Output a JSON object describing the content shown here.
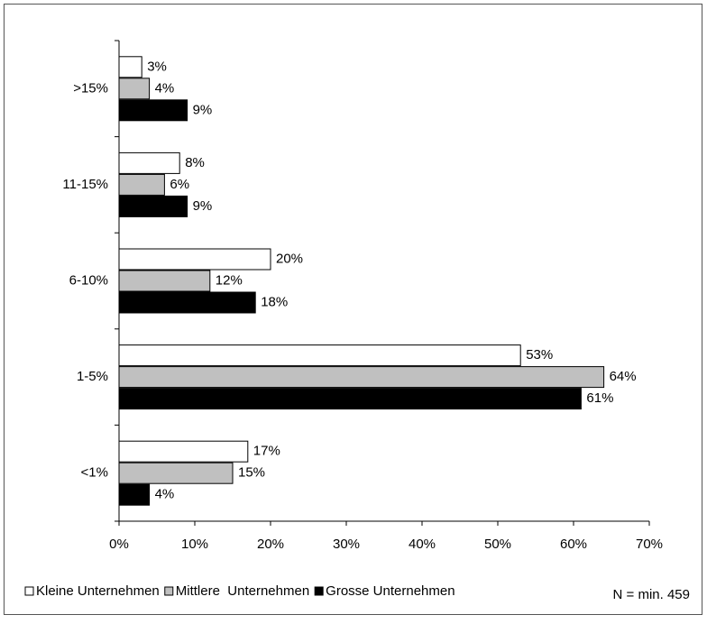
{
  "chart_data": {
    "type": "hbar",
    "categories": [
      ">15%",
      "11-15%",
      "6-10%",
      "1-5%",
      "<1%"
    ],
    "series": [
      {
        "name": "Kleine Unternehmen",
        "color": "#ffffff",
        "values": [
          3,
          8,
          20,
          53,
          17
        ],
        "value_labels": [
          "3%",
          "8%",
          "20%",
          "53%",
          "17%"
        ]
      },
      {
        "name": "Mittlere  Unternehmen",
        "color": "#c0c0c0",
        "values": [
          4,
          6,
          12,
          64,
          15
        ],
        "value_labels": [
          "4%",
          "6%",
          "12%",
          "64%",
          "15%"
        ]
      },
      {
        "name": "Grosse Unternehmen",
        "color": "#000000",
        "values": [
          9,
          9,
          18,
          61,
          4
        ],
        "value_labels": [
          "9%",
          "9%",
          "18%",
          "61%",
          "4%"
        ]
      }
    ],
    "xlim": [
      0,
      70
    ],
    "xticks": [
      {
        "value": 0,
        "label": "0%"
      },
      {
        "value": 10,
        "label": "10%"
      },
      {
        "value": 20,
        "label": "20%"
      },
      {
        "value": 30,
        "label": "30%"
      },
      {
        "value": 40,
        "label": "40%"
      },
      {
        "value": 50,
        "label": "50%"
      },
      {
        "value": 60,
        "label": "60%"
      },
      {
        "value": 70,
        "label": "70%"
      }
    ],
    "grid": false,
    "legend": "bottom",
    "annotation": "N = min. 459"
  }
}
